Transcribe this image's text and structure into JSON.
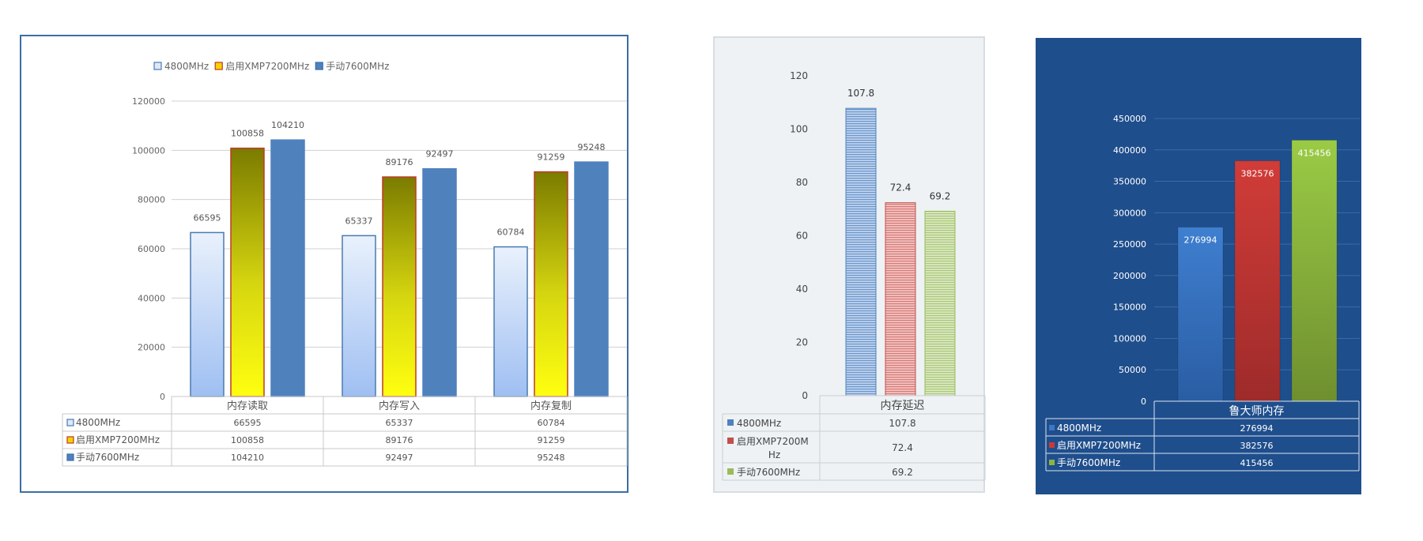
{
  "chart_data": [
    {
      "type": "bar",
      "categories": [
        "内存读取",
        "内存写入",
        "内存复制"
      ],
      "series": [
        {
          "name": "4800MHz",
          "values": [
            66595,
            65337,
            60784
          ],
          "color": "#c9dcf7"
        },
        {
          "name": "启用XMP7200MHz",
          "values": [
            100858,
            89176,
            91259
          ],
          "color": "#e8d800"
        },
        {
          "name": "手动7600MHz",
          "values": [
            104210,
            92497,
            95248
          ],
          "color": "#4f81bd"
        }
      ],
      "ylim": [
        0,
        120000
      ],
      "yticks": [
        "0",
        "20000",
        "40000",
        "60000",
        "80000",
        "100000",
        "120000"
      ],
      "legend": "top-left",
      "grid": true,
      "data_table": true
    },
    {
      "type": "bar",
      "categories": [
        "内存延迟"
      ],
      "series": [
        {
          "name": "4800MHz",
          "values": [
            107.8
          ],
          "color": "#4f81bd"
        },
        {
          "name": "启用XMP7200MHz",
          "values": [
            72.4
          ],
          "color": "#c0504d"
        },
        {
          "name": "手动7600MHz",
          "values": [
            69.2
          ],
          "color": "#9bbb59"
        }
      ],
      "ylim": [
        0,
        120
      ],
      "yticks": [
        "0",
        "20",
        "40",
        "60",
        "80",
        "100",
        "120"
      ],
      "grid": false,
      "data_table": true
    },
    {
      "type": "bar",
      "categories": [
        "鲁大师内存"
      ],
      "series": [
        {
          "name": "4800MHz",
          "values": [
            276994
          ],
          "color": "#3c78c8"
        },
        {
          "name": "启用XMP7200MHz",
          "values": [
            382576
          ],
          "color": "#c93a36"
        },
        {
          "name": "手动7600MHz",
          "values": [
            415456
          ],
          "color": "#8cb540"
        }
      ],
      "ylim": [
        0,
        450000
      ],
      "yticks": [
        "0",
        "50000",
        "100000",
        "150000",
        "200000",
        "250000",
        "300000",
        "350000",
        "400000",
        "450000"
      ],
      "grid": true,
      "data_table": true
    }
  ]
}
